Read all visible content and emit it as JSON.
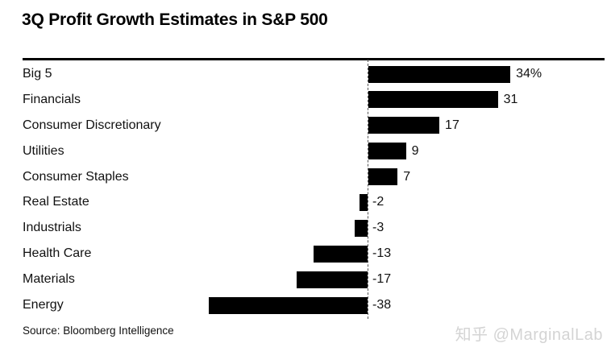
{
  "title": "3Q Profit Growth Estimates in S&P 500",
  "source": "Source: Bloomberg Intelligence",
  "watermark": "知乎 @MarginalLab",
  "colors": {
    "bar": "#000000",
    "rule": "#000000",
    "zero_line": "#555555",
    "text": "#111111",
    "watermark": "#d4d4d4"
  },
  "chart_data": {
    "type": "bar",
    "orientation": "horizontal",
    "title": "3Q Profit Growth Estimates in S&P 500",
    "categories": [
      "Big 5",
      "Financials",
      "Consumer Discretionary",
      "Utilities",
      "Consumer Staples",
      "Real Estate",
      "Industrials",
      "Health Care",
      "Materials",
      "Energy"
    ],
    "values": [
      34,
      31,
      17,
      9,
      7,
      -2,
      -3,
      -13,
      -17,
      -38
    ],
    "value_labels": [
      "34%",
      "31",
      "17",
      "9",
      "7",
      "-2",
      "-3",
      "-13",
      "-17",
      "-38"
    ],
    "unit": "percent growth",
    "xlim": [
      -42,
      42
    ],
    "grid": false,
    "legend": false,
    "zero_baseline": true,
    "source": "Bloomberg Intelligence"
  }
}
